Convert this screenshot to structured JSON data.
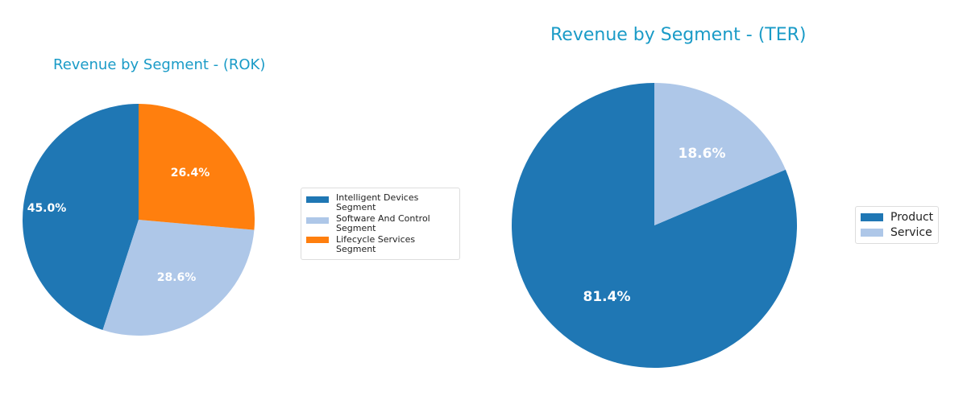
{
  "chart_data": [
    {
      "type": "pie",
      "title": "Revenue by Segment - (ROK)",
      "categories": [
        "Intelligent Devices Segment",
        "Software And Control Segment",
        "Lifecycle Services Segment"
      ],
      "values": [
        45.0,
        28.6,
        26.4
      ],
      "labels": [
        "45.0%",
        "28.6%",
        "26.4%"
      ],
      "colors": [
        "#1f77b4",
        "#aec7e8",
        "#ff7f0e"
      ],
      "legend_position": "right",
      "start_angle": 90
    },
    {
      "type": "pie",
      "title": "Revenue by Segment - (TER)",
      "categories": [
        "Product",
        "Service"
      ],
      "values": [
        81.4,
        18.6
      ],
      "labels": [
        "81.4%",
        "18.6%"
      ],
      "colors": [
        "#1f77b4",
        "#aec7e8"
      ],
      "legend_position": "right",
      "start_angle": 90
    }
  ],
  "charts": {
    "rok": {
      "title": "Revenue by Segment - (ROK)",
      "legend": [
        {
          "label": "Intelligent Devices\nSegment",
          "color": "#1f77b4"
        },
        {
          "label": "Software And Control\nSegment",
          "color": "#aec7e8"
        },
        {
          "label": "Lifecycle Services Segment",
          "color": "#ff7f0e"
        }
      ],
      "legend_lines": [
        [
          "Intelligent Devices",
          "Segment"
        ],
        [
          "Software And Control",
          "Segment"
        ],
        [
          "Lifecycle Services Segment"
        ]
      ],
      "labels": [
        "45.0%",
        "28.6%",
        "26.4%"
      ]
    },
    "ter": {
      "title": "Revenue by Segment - (TER)",
      "legend": [
        {
          "label": "Product",
          "color": "#1f77b4"
        },
        {
          "label": "Service",
          "color": "#aec7e8"
        }
      ],
      "labels": [
        "81.4%",
        "18.6%"
      ]
    }
  },
  "title_color": "#1a9bc7"
}
